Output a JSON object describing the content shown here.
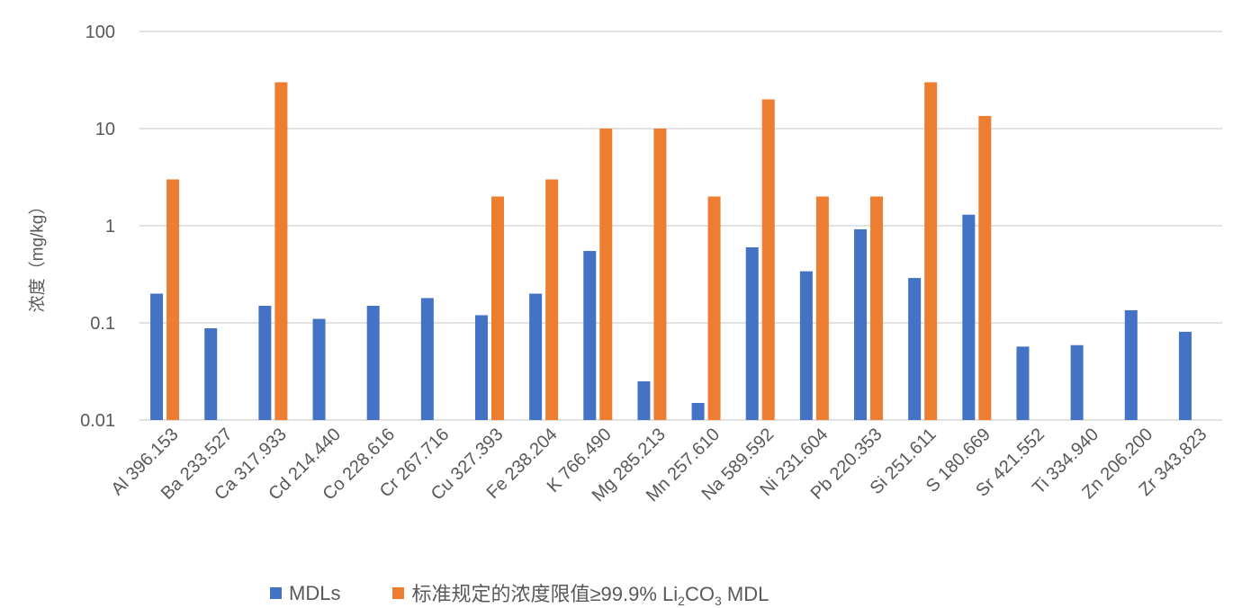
{
  "chart_data": {
    "type": "bar",
    "title": "",
    "xlabel": "",
    "ylabel": "浓度（mg/kg）",
    "yscale": "log",
    "ylim": [
      0.01,
      100
    ],
    "yticks": [
      "0.01",
      "0.1",
      "1",
      "10",
      "100"
    ],
    "ytick_values": [
      0.01,
      0.1,
      1,
      10,
      100
    ],
    "grid": true,
    "legend_position": "bottom",
    "categories": [
      "Al 396.153",
      "Ba 233.527",
      "Ca 317.933",
      "Cd 214.440",
      "Co 228.616",
      "Cr 267.716",
      "Cu 327.393",
      "Fe 238.204",
      "K 766.490",
      "Mg 285.213",
      "Mn 257.610",
      "Na 589.592",
      "Ni 231.604",
      "Pb 220.353",
      "Si 251.611",
      "S 180.669",
      "Sr 421.552",
      "Ti 334.940",
      "Zn 206.200",
      "Zr 343.823"
    ],
    "series": [
      {
        "name": "MDLs",
        "color": "#4472C4",
        "values": [
          0.2,
          0.088,
          0.15,
          0.11,
          0.15,
          0.18,
          0.12,
          0.2,
          0.55,
          0.025,
          0.015,
          0.6,
          0.34,
          0.92,
          0.29,
          1.3,
          0.057,
          0.059,
          0.135,
          0.081
        ]
      },
      {
        "name": "标准规定的浓度限值≥99.9% Li2CO3 MDL",
        "color": "#ED7D31",
        "values": [
          3,
          null,
          30,
          null,
          null,
          null,
          2,
          3,
          10,
          10,
          2,
          20,
          2,
          2,
          30,
          13.5,
          null,
          null,
          null,
          null
        ]
      }
    ]
  },
  "legend": {
    "mdl": "MDLs",
    "std_part1": "标准规定的浓度限值≥99.9% Li",
    "std_sub1": "2",
    "std_part2": "CO",
    "std_sub2": "3",
    "std_part3": " MDL"
  }
}
